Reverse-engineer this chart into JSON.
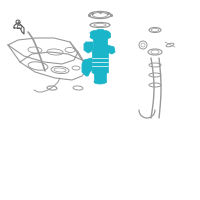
{
  "background_color": "#ffffff",
  "highlight_color": "#1ab5c8",
  "line_color": "#999999",
  "dark_line": "#555555",
  "fig_width": 2.0,
  "fig_height": 2.0,
  "dpi": 100
}
